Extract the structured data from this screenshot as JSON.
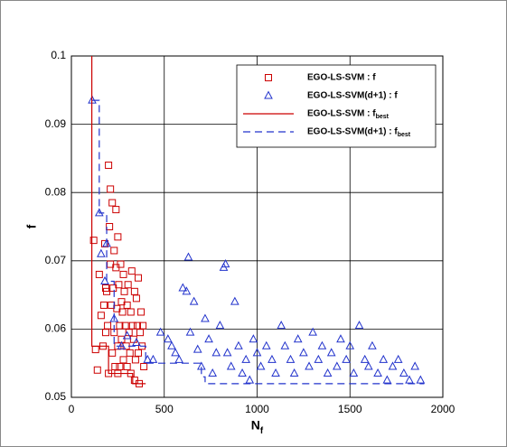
{
  "chart_data": {
    "type": "scatter",
    "x_label": "N_f",
    "y_label": "f",
    "xlim": [
      0,
      2000
    ],
    "xticks": [
      0,
      500,
      1000,
      1500,
      2000
    ],
    "ylim": [
      0.05,
      0.1
    ],
    "yticks": [
      0.05,
      0.06,
      0.07,
      0.08,
      0.09,
      0.1
    ],
    "grid": true,
    "legend": "top-right",
    "series": [
      {
        "name": "EGO-LS-SVM : f",
        "color": "#cc0000",
        "marker": "square",
        "line": "none",
        "x": [
          120,
          130,
          140,
          150,
          160,
          170,
          180,
          185,
          190,
          195,
          200,
          205,
          210,
          210,
          215,
          220,
          220,
          225,
          230,
          230,
          235,
          240,
          240,
          245,
          250,
          250,
          255,
          260,
          260,
          265,
          270,
          270,
          275,
          280,
          280,
          285,
          290,
          295,
          300,
          300,
          305,
          310,
          315,
          320,
          320,
          325,
          330,
          335,
          340,
          340,
          345,
          350,
          355,
          360,
          360,
          365,
          370,
          375,
          380,
          385,
          390,
          200,
          250,
          185,
          175
        ],
        "y": [
          0.073,
          0.057,
          0.054,
          0.068,
          0.062,
          0.0575,
          0.0725,
          0.066,
          0.0655,
          0.0605,
          0.084,
          0.075,
          0.0805,
          0.0695,
          0.0635,
          0.0785,
          0.0565,
          0.066,
          0.0715,
          0.0595,
          0.0545,
          0.0775,
          0.069,
          0.063,
          0.0735,
          0.0575,
          0.0665,
          0.0605,
          0.0545,
          0.0695,
          0.064,
          0.0585,
          0.0625,
          0.068,
          0.0555,
          0.0655,
          0.0605,
          0.0575,
          0.0635,
          0.0545,
          0.0665,
          0.0595,
          0.0565,
          0.0625,
          0.0535,
          0.0685,
          0.0605,
          0.0585,
          0.0655,
          0.0525,
          0.0555,
          0.0645,
          0.0605,
          0.0675,
          0.0565,
          0.052,
          0.0595,
          0.0625,
          0.0575,
          0.0605,
          0.0545,
          0.0535,
          0.0535,
          0.0595,
          0.0635
        ]
      },
      {
        "name": "EGO-LS-SVM(d+1) : f",
        "color": "#2233cc",
        "marker": "triangle",
        "line": "none",
        "x": [
          112,
          150,
          160,
          180,
          190,
          230,
          270,
          300,
          350,
          410,
          440,
          480,
          520,
          540,
          560,
          580,
          600,
          620,
          630,
          640,
          660,
          680,
          700,
          720,
          740,
          760,
          780,
          800,
          820,
          830,
          840,
          860,
          880,
          900,
          920,
          940,
          960,
          980,
          1000,
          1020,
          1050,
          1080,
          1100,
          1130,
          1150,
          1180,
          1200,
          1220,
          1250,
          1280,
          1300,
          1330,
          1350,
          1380,
          1400,
          1430,
          1450,
          1480,
          1500,
          1520,
          1550,
          1580,
          1600,
          1620,
          1650,
          1680,
          1700,
          1730,
          1760,
          1790,
          1820,
          1850,
          1880
        ],
        "y": [
          0.0935,
          0.077,
          0.071,
          0.067,
          0.0725,
          0.0615,
          0.0575,
          0.059,
          0.058,
          0.0555,
          0.0555,
          0.0595,
          0.0585,
          0.0575,
          0.0565,
          0.0555,
          0.066,
          0.0655,
          0.0705,
          0.0595,
          0.064,
          0.057,
          0.0545,
          0.0615,
          0.0585,
          0.0535,
          0.0565,
          0.0605,
          0.069,
          0.0695,
          0.0565,
          0.0545,
          0.064,
          0.0575,
          0.0535,
          0.0555,
          0.0525,
          0.0585,
          0.0565,
          0.0545,
          0.0575,
          0.0555,
          0.0535,
          0.0605,
          0.0575,
          0.0555,
          0.0535,
          0.0585,
          0.0565,
          0.0545,
          0.0595,
          0.0555,
          0.0575,
          0.0535,
          0.0565,
          0.0545,
          0.0585,
          0.0555,
          0.0575,
          0.0535,
          0.0605,
          0.0555,
          0.0545,
          0.0575,
          0.0535,
          0.0555,
          0.0525,
          0.0545,
          0.0555,
          0.0535,
          0.0525,
          0.0545,
          0.0525
        ]
      },
      {
        "name": "EGO-LS-SVM : f_best",
        "color": "#cc0000",
        "marker": "none",
        "line": "solid",
        "x": [
          110,
          110,
          200,
          200,
          330,
          330,
          400
        ],
        "y": [
          0.1,
          0.0575,
          0.0575,
          0.0535,
          0.0535,
          0.052,
          0.052
        ]
      },
      {
        "name": "EGO-LS-SVM(d+1) : f_best",
        "color": "#2233cc",
        "marker": "none",
        "line": "dashed",
        "x": [
          112,
          150,
          150,
          190,
          190,
          230,
          230,
          400,
          400,
          700,
          700,
          720,
          720,
          1900
        ],
        "y": [
          0.0935,
          0.0935,
          0.077,
          0.077,
          0.067,
          0.067,
          0.0575,
          0.0575,
          0.055,
          0.055,
          0.053,
          0.053,
          0.052,
          0.052
        ]
      }
    ]
  }
}
